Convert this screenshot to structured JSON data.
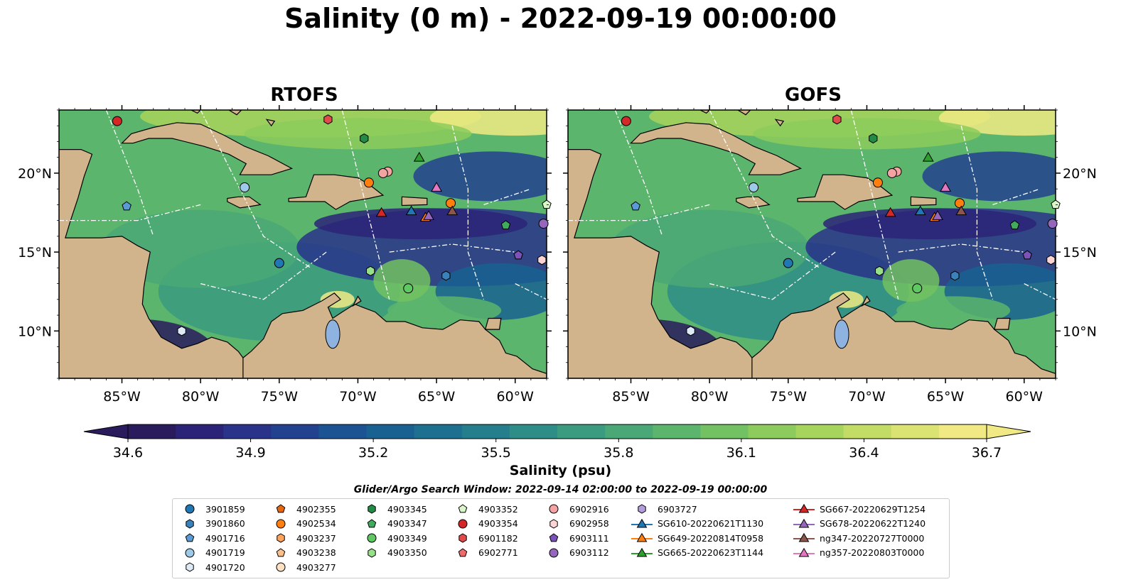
{
  "title": "Salinity (0 m) - 2022-09-19 00:00:00",
  "panels": [
    {
      "title": "RTOFS"
    },
    {
      "title": "GOFS"
    }
  ],
  "map": {
    "lon_range": [
      -89,
      -58
    ],
    "lat_range": [
      7,
      24
    ],
    "x_ticks": [
      {
        "lon": -85,
        "label": "85°W"
      },
      {
        "lon": -80,
        "label": "80°W"
      },
      {
        "lon": -75,
        "label": "75°W"
      },
      {
        "lon": -70,
        "label": "70°W"
      },
      {
        "lon": -65,
        "label": "65°W"
      },
      {
        "lon": -60,
        "label": "60°W"
      }
    ],
    "y_ticks": [
      {
        "lat": 10,
        "label": "10°N"
      },
      {
        "lat": 15,
        "label": "15°N"
      },
      {
        "lat": 20,
        "label": "20°N"
      }
    ]
  },
  "colorbar": {
    "min": 34.6,
    "max": 36.7,
    "ticks": [
      "34.6",
      "34.9",
      "35.2",
      "35.5",
      "35.8",
      "36.1",
      "36.4",
      "36.7"
    ],
    "label": "Salinity (psu)",
    "colors": [
      "#2a1b5c",
      "#2b2378",
      "#283389",
      "#22428f",
      "#1c5393",
      "#196191",
      "#1d708f",
      "#257e8c",
      "#2e8d87",
      "#3a9b80",
      "#4aa876",
      "#5cb56c",
      "#72c162",
      "#8ccb5c",
      "#a7d45c",
      "#c2dc66",
      "#dbe373",
      "#f1ea84"
    ]
  },
  "search_window": "Glider/Argo Search Window: 2022-09-14 02:00:00 to 2022-09-19 00:00:00",
  "legend": [
    [
      {
        "label": "3901859",
        "marker": "circle",
        "color": "#1f77b4"
      },
      {
        "label": "3901860",
        "marker": "hexagon",
        "color": "#3a82b9"
      },
      {
        "label": "4901716",
        "marker": "pentagon",
        "color": "#5b9bd5"
      },
      {
        "label": "4901719",
        "marker": "circle",
        "color": "#9ecae9"
      },
      {
        "label": "4901720",
        "marker": "hexagon",
        "color": "#deebf7"
      }
    ],
    [
      {
        "label": "4902355",
        "marker": "pentagon",
        "color": "#e6670e"
      },
      {
        "label": "4902534",
        "marker": "circle",
        "color": "#ff7f0e"
      },
      {
        "label": "4903237",
        "marker": "hexagon",
        "color": "#fda35c"
      },
      {
        "label": "4903238",
        "marker": "pentagon",
        "color": "#fdc08a"
      },
      {
        "label": "4903277",
        "marker": "circle",
        "color": "#fee0c2"
      }
    ],
    [
      {
        "label": "4903345",
        "marker": "hexagon",
        "color": "#238b45"
      },
      {
        "label": "4903347",
        "marker": "pentagon",
        "color": "#41ab5d"
      },
      {
        "label": "4903349",
        "marker": "circle",
        "color": "#5ec962"
      },
      {
        "label": "4903350",
        "marker": "hexagon",
        "color": "#98df8a"
      }
    ],
    [
      {
        "label": "4903352",
        "marker": "pentagon",
        "color": "#d9f5c9"
      },
      {
        "label": "4903354",
        "marker": "circle",
        "color": "#d62728"
      },
      {
        "label": "6901182",
        "marker": "hexagon",
        "color": "#e04a4a"
      },
      {
        "label": "6902771",
        "marker": "pentagon",
        "color": "#ef6a6a"
      }
    ],
    [
      {
        "label": "6902916",
        "marker": "circle",
        "color": "#f4a3a3"
      },
      {
        "label": "6902958",
        "marker": "hexagon",
        "color": "#fcd4d4"
      },
      {
        "label": "6903111",
        "marker": "pentagon",
        "color": "#7b52b9"
      },
      {
        "label": "6903112",
        "marker": "circle",
        "color": "#9467bd"
      }
    ],
    [
      {
        "label": "6903727",
        "marker": "hexagon",
        "color": "#b39ddb"
      },
      {
        "label": "SG610-20220621T1130",
        "marker": "triangle",
        "color": "#1f77b4",
        "line": true
      },
      {
        "label": "SG649-20220814T0958",
        "marker": "triangle",
        "color": "#ff7f0e",
        "line": true
      },
      {
        "label": "SG665-20220623T1144",
        "marker": "triangle",
        "color": "#2ca02c",
        "line": true
      }
    ],
    [
      {
        "label": "SG667-20220629T1254",
        "marker": "triangle",
        "color": "#d62728",
        "line": true
      },
      {
        "label": "SG678-20220622T1240",
        "marker": "triangle",
        "color": "#9467bd",
        "line": true
      },
      {
        "label": "ng347-20220727T0000",
        "marker": "triangle",
        "color": "#8c564b",
        "line": true
      },
      {
        "label": "ng357-20220803T0000",
        "marker": "triangle",
        "color": "#e377c2",
        "line": true
      }
    ]
  ],
  "observations": [
    {
      "lon": -85.3,
      "lat": 23.3,
      "marker": "circle",
      "color": "#d62728"
    },
    {
      "lon": -71.9,
      "lat": 23.4,
      "marker": "hexagon",
      "color": "#e04a4a"
    },
    {
      "lon": -69.6,
      "lat": 22.2,
      "marker": "hexagon",
      "color": "#238b45"
    },
    {
      "lon": -68.1,
      "lat": 20.1,
      "marker": "circle",
      "color": "#f4a3a3"
    },
    {
      "lon": -68.4,
      "lat": 20.0,
      "marker": "circle",
      "color": "#f4a3a3"
    },
    {
      "lon": -69.3,
      "lat": 19.4,
      "marker": "circle",
      "color": "#ff7f0e"
    },
    {
      "lon": -77.2,
      "lat": 19.1,
      "marker": "circle",
      "color": "#9ecae9"
    },
    {
      "lon": -84.7,
      "lat": 17.9,
      "marker": "pentagon",
      "color": "#5b9bd5"
    },
    {
      "lon": -75.0,
      "lat": 14.3,
      "marker": "circle",
      "color": "#1f77b4"
    },
    {
      "lon": -81.2,
      "lat": 10.0,
      "marker": "hexagon",
      "color": "#deebf7"
    },
    {
      "lon": -69.2,
      "lat": 13.8,
      "marker": "hexagon",
      "color": "#98df8a"
    },
    {
      "lon": -66.8,
      "lat": 12.7,
      "marker": "circle",
      "color": "#5ec962"
    },
    {
      "lon": -64.4,
      "lat": 13.5,
      "marker": "hexagon",
      "color": "#3a82b9"
    },
    {
      "lon": -64.1,
      "lat": 18.1,
      "marker": "circle",
      "color": "#ff7f0e"
    },
    {
      "lon": -60.6,
      "lat": 16.7,
      "marker": "pentagon",
      "color": "#41ab5d"
    },
    {
      "lon": -58.2,
      "lat": 16.8,
      "marker": "circle",
      "color": "#9467bd"
    },
    {
      "lon": -58.3,
      "lat": 14.5,
      "marker": "hexagon",
      "color": "#fcd4d4"
    },
    {
      "lon": -59.8,
      "lat": 14.8,
      "marker": "pentagon",
      "color": "#7b52b9"
    },
    {
      "lon": -58.0,
      "lat": 18.0,
      "marker": "pentagon",
      "color": "#d9f5c9"
    },
    {
      "lon": -66.1,
      "lat": 21.0,
      "marker": "triangle",
      "color": "#2ca02c"
    },
    {
      "lon": -65.0,
      "lat": 19.1,
      "marker": "triangle",
      "color": "#e377c2"
    },
    {
      "lon": -68.5,
      "lat": 17.5,
      "marker": "triangle",
      "color": "#d62728"
    },
    {
      "lon": -66.6,
      "lat": 17.6,
      "marker": "triangle",
      "color": "#1f77b4"
    },
    {
      "lon": -65.7,
      "lat": 17.2,
      "marker": "triangle",
      "color": "#ff7f0e"
    },
    {
      "lon": -65.5,
      "lat": 17.3,
      "marker": "triangle",
      "color": "#9467bd"
    },
    {
      "lon": -64.0,
      "lat": 17.6,
      "marker": "triangle",
      "color": "#8c564b"
    }
  ]
}
